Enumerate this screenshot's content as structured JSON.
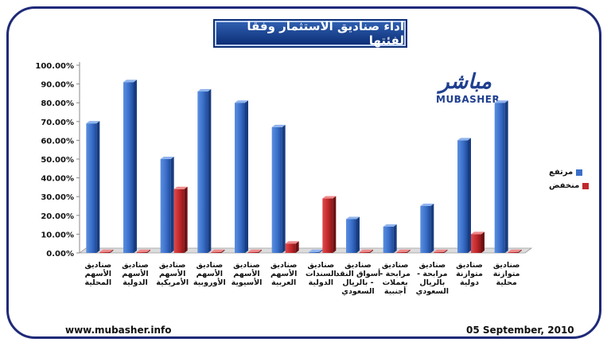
{
  "title": "اداء صناديق الاستثمار وفقا لفئتها",
  "logo": {
    "arabic": "مباشر",
    "english": "MUBASHER"
  },
  "footer": {
    "website": "www.mubasher.info",
    "date": "05 September, 2010"
  },
  "colors": {
    "high": "#3a6fc9",
    "low": "#c0282b",
    "frame": "#1f2a78"
  },
  "chart_data": {
    "type": "bar",
    "categories": [
      [
        "صناديق",
        "الأسهم",
        "المحلية"
      ],
      [
        "صناديق",
        "الأسهم",
        "الدولية"
      ],
      [
        "صناديق",
        "الأسهم",
        "الأمريكية"
      ],
      [
        "صناديق",
        "الأسهم",
        "الأوروبية"
      ],
      [
        "صناديق",
        "الأسهم",
        "الأسيوية"
      ],
      [
        "صناديق",
        "الأسهم",
        "العربية"
      ],
      [
        "صناديق",
        "السندات",
        "الدولية"
      ],
      [
        "صناديق",
        "أسواق النقد",
        "- بالريال",
        "السعودي"
      ],
      [
        "صناديق",
        "مرابحة -",
        "بعملات",
        "أجنبية"
      ],
      [
        "صناديق",
        "مرابحة -",
        "بالريال",
        "السعودي"
      ],
      [
        "صناديق",
        "متوازنة",
        "دولية"
      ],
      [
        "صناديق",
        "متوازنة",
        "محلية"
      ]
    ],
    "series": [
      {
        "name": "مرتفع",
        "values": [
          69,
          91,
          50,
          86,
          80,
          67,
          0,
          18,
          14,
          25,
          60,
          80
        ]
      },
      {
        "name": "منخفض",
        "values": [
          0,
          0,
          34,
          0,
          0,
          5,
          29,
          0,
          0,
          0,
          10,
          0
        ]
      }
    ],
    "ylim": [
      0,
      100
    ],
    "yticks": [
      "0.00%",
      "10.00%",
      "20.00%",
      "30.00%",
      "40.00%",
      "50.00%",
      "60.00%",
      "70.00%",
      "80.00%",
      "90.00%",
      "100.00%"
    ],
    "legend_position": "right"
  }
}
